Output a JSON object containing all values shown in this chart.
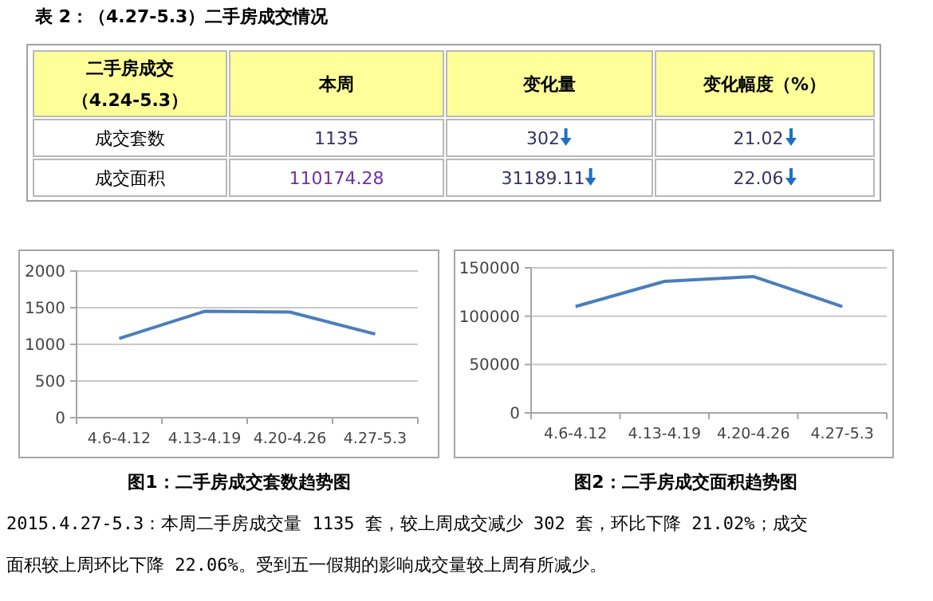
{
  "chart_data": [
    {
      "type": "other",
      "title": "表 2：（4.27-5.3）二手房成交情况",
      "annotations": [
        "二手房成交",
        "（4.24-5.3）",
        "本周",
        "变化量",
        "变化幅度（%）",
        "成交套数",
        "1135",
        "302",
        "21.02",
        "成交面积",
        "110174.28",
        "31189.11",
        "22.06"
      ]
    },
    {
      "type": "line",
      "title": "图1：二手房成交套数趋势图",
      "categories": [
        "4.6-4.12",
        "4.13-4.19",
        "4.20-4.26",
        "4.27-5.3"
      ],
      "series": [
        {
          "color": "#4a7ebb",
          "values": [
            1080,
            1450,
            1440,
            1140
          ]
        }
      ],
      "ylim": [
        0,
        2000
      ],
      "yticks": [
        0,
        500,
        1000,
        1500,
        2000
      ],
      "grid": "y",
      "marker": "none",
      "line_style": "solid"
    },
    {
      "type": "line",
      "title": "图2：二手房成交面积趋势图",
      "categories": [
        "4.6-4.12",
        "4.13-4.19",
        "4.20-4.26",
        "4.27-5.3"
      ],
      "series": [
        {
          "color": "#4a7ebb",
          "values": [
            110000,
            136000,
            141000,
            110000
          ]
        }
      ],
      "ylim": [
        0,
        150000
      ],
      "yticks": [
        0,
        50000,
        100000,
        150000
      ],
      "grid": "y",
      "marker": "none",
      "line_style": "solid",
      "annotations": [
        "2015.4.27-5.3：本周二手房成交量 1135 套，较上周成交减少 302 套，环比下降 21.02%；成交",
        "面积较上周环比下降 22.06%。受到五一假期的影响成交量较上周有所减少。"
      ]
    }
  ]
}
